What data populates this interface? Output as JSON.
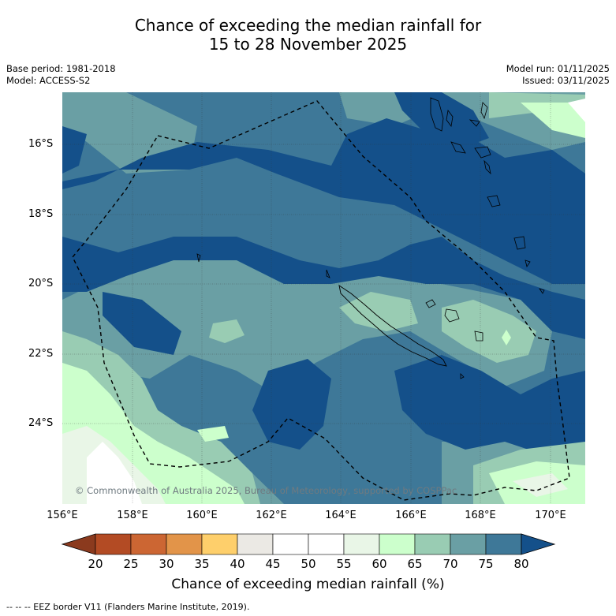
{
  "header": {
    "title_line1": "Chance of exceeding the median rainfall for",
    "title_line2": "15 to 28 November 2025",
    "base_period": "Base period: 1981-2018",
    "model": "Model: ACCESS-S2",
    "model_run": "Model run: 01/11/2025",
    "issued": "Issued: 03/11/2025"
  },
  "map": {
    "region": "Southwest Pacific - New Caledonia",
    "lat_labels": [
      "16°S",
      "18°S",
      "20°S",
      "22°S",
      "24°S"
    ],
    "lon_labels": [
      "156°E",
      "158°E",
      "160°E",
      "162°E",
      "164°E",
      "166°E",
      "168°E",
      "170°E"
    ],
    "copyright": "© Commonwealth of Australia 2025, Bureau of Meteorology, supported by COSPPac"
  },
  "colorbar": {
    "ticks": [
      "20",
      "25",
      "30",
      "35",
      "40",
      "45",
      "50",
      "55",
      "60",
      "65",
      "70",
      "75",
      "80"
    ],
    "colors": [
      "#8b3a1e",
      "#b34b24",
      "#cc6633",
      "#e29449",
      "#fecf6b",
      "#ebe9e4",
      "#ffffff",
      "#ffffff",
      "#e9f6e7",
      "#ccffcc",
      "#99ccb3",
      "#6a9fa4",
      "#3e7898",
      "#14508a"
    ],
    "label": "Chance of exceeding median rainfall (%)"
  },
  "legend": {
    "eez_note": "-- -- -- EEZ border V11 (Flanders Marine Institute, 2019)."
  }
}
